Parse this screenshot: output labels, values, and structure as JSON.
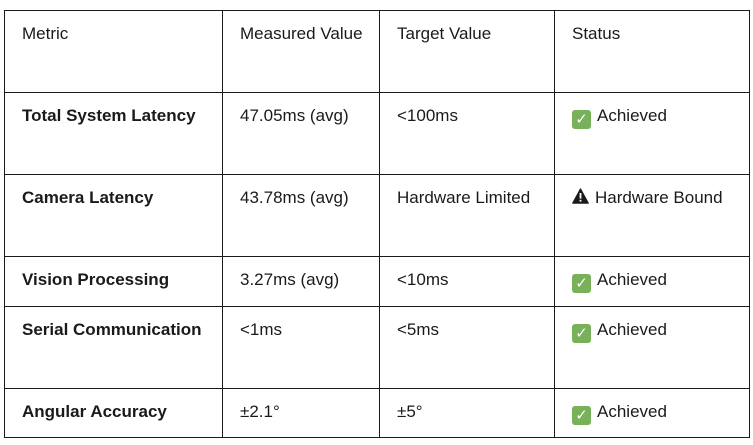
{
  "table": {
    "headers": [
      "Metric",
      "Measured Value",
      "Target Value",
      "Status"
    ],
    "rows": [
      {
        "metric": "Total System Latency",
        "measured": "47.05ms (avg)",
        "target": "<100ms",
        "status": "Achieved",
        "status_icon": "check-icon"
      },
      {
        "metric": "Camera Latency",
        "measured": "43.78ms (avg)",
        "target": "Hardware Limited",
        "status": "Hardware Bound",
        "status_icon": "warning-icon"
      },
      {
        "metric": "Vision Processing",
        "measured": "3.27ms (avg)",
        "target": "<10ms",
        "status": "Achieved",
        "status_icon": "check-icon"
      },
      {
        "metric": "Serial Communication",
        "measured": "<1ms",
        "target": "<5ms",
        "status": "Achieved",
        "status_icon": "check-icon"
      },
      {
        "metric": "Angular Accuracy",
        "measured": "±2.1°",
        "target": "±5°",
        "status": "Achieved",
        "status_icon": "check-icon"
      }
    ]
  },
  "colors": {
    "check_bg": "#78b159",
    "border": "#1a1a1a"
  }
}
